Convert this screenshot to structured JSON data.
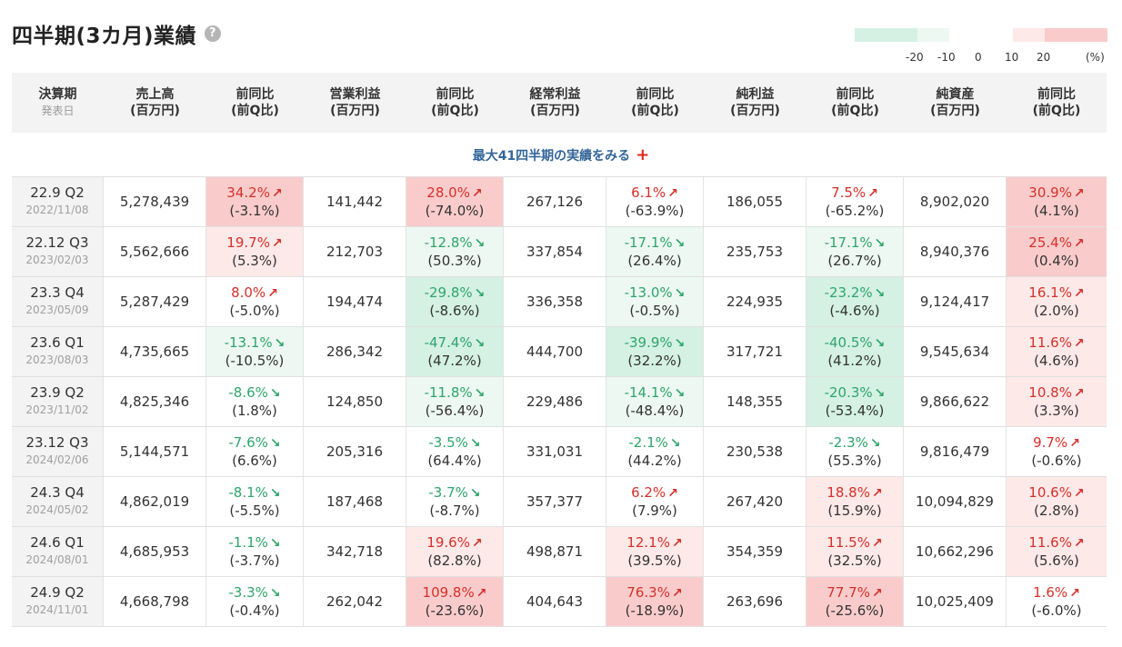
{
  "title": "四半期(3カ月)業績",
  "help_icon": "?",
  "legend": {
    "ticks": [
      "-20",
      "-10",
      "0",
      "10",
      "20",
      "(%)"
    ],
    "colors": [
      "#d4f1e3",
      "#edf8f2",
      "#ffffff",
      "#fde9e8",
      "#f9cccb"
    ]
  },
  "headers": [
    {
      "l1": "決算期",
      "l2": "発表日"
    },
    {
      "l1": "売上高",
      "l2": "(百万円)"
    },
    {
      "l1": "前同比",
      "l2": "(前Q比)"
    },
    {
      "l1": "営業利益",
      "l2": "(百万円)"
    },
    {
      "l1": "前同比",
      "l2": "(前Q比)"
    },
    {
      "l1": "経常利益",
      "l2": "(百万円)"
    },
    {
      "l1": "前同比",
      "l2": "(前Q比)"
    },
    {
      "l1": "純利益",
      "l2": "(百万円)"
    },
    {
      "l1": "前同比",
      "l2": "(前Q比)"
    },
    {
      "l1": "純資産",
      "l2": "(百万円)"
    },
    {
      "l1": "前同比",
      "l2": "(前Q比)"
    }
  ],
  "more_link": "最大41四半期の実績をみる",
  "more_plus": "+",
  "rows": [
    {
      "period": "22.9 Q2",
      "date": "2022/11/08",
      "sales": "5,278,439",
      "sales_yoy": "34.2%",
      "sales_qoq": "(-3.1%)",
      "op": "141,442",
      "op_yoy": "28.0%",
      "op_qoq": "(-74.0%)",
      "ord": "267,126",
      "ord_yoy": "6.1%",
      "ord_qoq": "(-63.9%)",
      "net": "186,055",
      "net_yoy": "7.5%",
      "net_qoq": "(-65.2%)",
      "assets": "8,902,020",
      "assets_yoy": "30.9%",
      "assets_qoq": "(4.1%)"
    },
    {
      "period": "22.12 Q3",
      "date": "2023/02/03",
      "sales": "5,562,666",
      "sales_yoy": "19.7%",
      "sales_qoq": "(5.3%)",
      "op": "212,703",
      "op_yoy": "-12.8%",
      "op_qoq": "(50.3%)",
      "ord": "337,854",
      "ord_yoy": "-17.1%",
      "ord_qoq": "(26.4%)",
      "net": "235,753",
      "net_yoy": "-17.1%",
      "net_qoq": "(26.7%)",
      "assets": "8,940,376",
      "assets_yoy": "25.4%",
      "assets_qoq": "(0.4%)"
    },
    {
      "period": "23.3 Q4",
      "date": "2023/05/09",
      "sales": "5,287,429",
      "sales_yoy": "8.0%",
      "sales_qoq": "(-5.0%)",
      "op": "194,474",
      "op_yoy": "-29.8%",
      "op_qoq": "(-8.6%)",
      "ord": "336,358",
      "ord_yoy": "-13.0%",
      "ord_qoq": "(-0.5%)",
      "net": "224,935",
      "net_yoy": "-23.2%",
      "net_qoq": "(-4.6%)",
      "assets": "9,124,417",
      "assets_yoy": "16.1%",
      "assets_qoq": "(2.0%)"
    },
    {
      "period": "23.6 Q1",
      "date": "2023/08/03",
      "sales": "4,735,665",
      "sales_yoy": "-13.1%",
      "sales_qoq": "(-10.5%)",
      "op": "286,342",
      "op_yoy": "-47.4%",
      "op_qoq": "(47.2%)",
      "ord": "444,700",
      "ord_yoy": "-39.9%",
      "ord_qoq": "(32.2%)",
      "net": "317,721",
      "net_yoy": "-40.5%",
      "net_qoq": "(41.2%)",
      "assets": "9,545,634",
      "assets_yoy": "11.6%",
      "assets_qoq": "(4.6%)"
    },
    {
      "period": "23.9 Q2",
      "date": "2023/11/02",
      "sales": "4,825,346",
      "sales_yoy": "-8.6%",
      "sales_qoq": "(1.8%)",
      "op": "124,850",
      "op_yoy": "-11.8%",
      "op_qoq": "(-56.4%)",
      "ord": "229,486",
      "ord_yoy": "-14.1%",
      "ord_qoq": "(-48.4%)",
      "net": "148,355",
      "net_yoy": "-20.3%",
      "net_qoq": "(-53.4%)",
      "assets": "9,866,622",
      "assets_yoy": "10.8%",
      "assets_qoq": "(3.3%)"
    },
    {
      "period": "23.12 Q3",
      "date": "2024/02/06",
      "sales": "5,144,571",
      "sales_yoy": "-7.6%",
      "sales_qoq": "(6.6%)",
      "op": "205,316",
      "op_yoy": "-3.5%",
      "op_qoq": "(64.4%)",
      "ord": "331,031",
      "ord_yoy": "-2.1%",
      "ord_qoq": "(44.2%)",
      "net": "230,538",
      "net_yoy": "-2.3%",
      "net_qoq": "(55.3%)",
      "assets": "9,816,479",
      "assets_yoy": "9.7%",
      "assets_qoq": "(-0.6%)"
    },
    {
      "period": "24.3 Q4",
      "date": "2024/05/02",
      "sales": "4,862,019",
      "sales_yoy": "-8.1%",
      "sales_qoq": "(-5.5%)",
      "op": "187,468",
      "op_yoy": "-3.7%",
      "op_qoq": "(-8.7%)",
      "ord": "357,377",
      "ord_yoy": "6.2%",
      "ord_qoq": "(7.9%)",
      "net": "267,420",
      "net_yoy": "18.8%",
      "net_qoq": "(15.9%)",
      "assets": "10,094,829",
      "assets_yoy": "10.6%",
      "assets_qoq": "(2.8%)"
    },
    {
      "period": "24.6 Q1",
      "date": "2024/08/01",
      "sales": "4,685,953",
      "sales_yoy": "-1.1%",
      "sales_qoq": "(-3.7%)",
      "op": "342,718",
      "op_yoy": "19.6%",
      "op_qoq": "(82.8%)",
      "ord": "498,871",
      "ord_yoy": "12.1%",
      "ord_qoq": "(39.5%)",
      "net": "354,359",
      "net_yoy": "11.5%",
      "net_qoq": "(32.5%)",
      "assets": "10,662,296",
      "assets_yoy": "11.6%",
      "assets_qoq": "(5.6%)"
    },
    {
      "period": "24.9 Q2",
      "date": "2024/11/01",
      "sales": "4,668,798",
      "sales_yoy": "-3.3%",
      "sales_qoq": "(-0.4%)",
      "op": "262,042",
      "op_yoy": "109.8%",
      "op_qoq": "(-23.6%)",
      "ord": "404,643",
      "ord_yoy": "76.3%",
      "ord_qoq": "(-18.9%)",
      "net": "263,696",
      "net_yoy": "77.7%",
      "net_qoq": "(-25.6%)",
      "assets": "10,025,409",
      "assets_yoy": "1.6%",
      "assets_qoq": "(-6.0%)"
    }
  ]
}
